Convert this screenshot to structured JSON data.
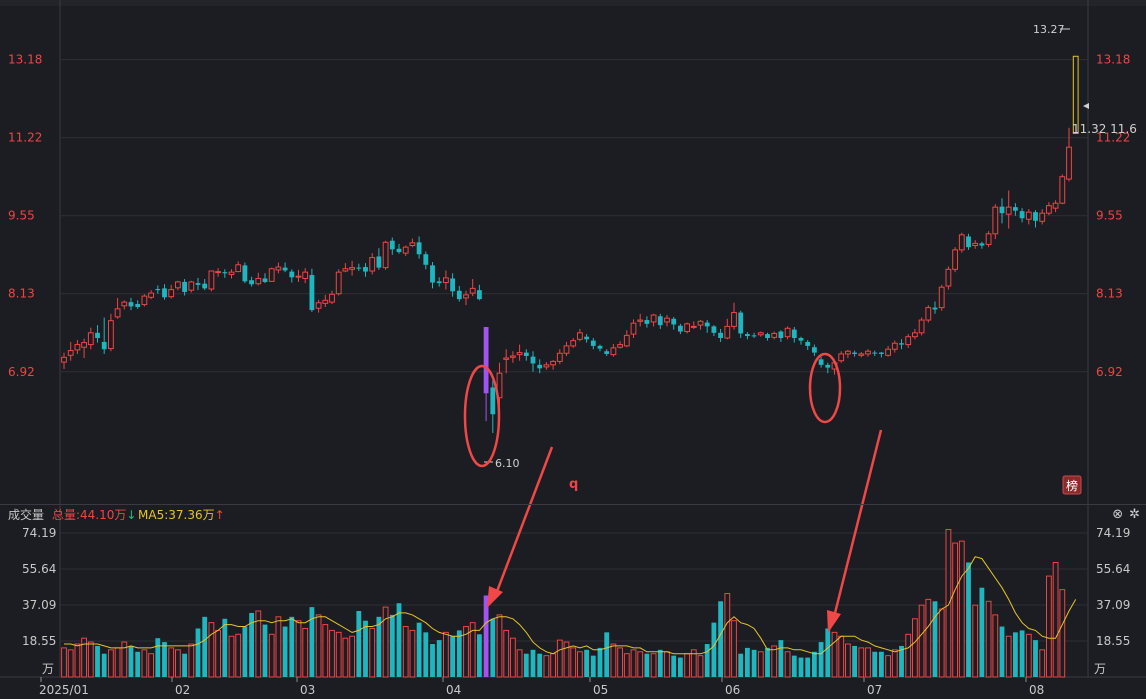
{
  "colors": {
    "background": "#1c1d22",
    "grid": "#2e2f36",
    "up": "#ef4444",
    "down": "#1fb7bf",
    "ma5": "#e5c42a",
    "highlight_bar": "#a154f2",
    "annotation": "#f04747",
    "price_axis_text": "#ef4444",
    "vol_axis_text": "#c8c8c8"
  },
  "price_panel": {
    "y_ticks": [
      "13.18",
      "11.22",
      "9.55",
      "8.13",
      "6.92"
    ],
    "high_marker": "13.27",
    "last_marker": "11.32 11.6",
    "low_marker": "6.10",
    "badge": "榜",
    "glyph_q": "q"
  },
  "volume_panel": {
    "title": "成交量",
    "total_label": "总量:44.10万",
    "total_arrow": "↓",
    "ma5_label": "MA5:37.36万",
    "ma5_arrow": "↑",
    "y_ticks": [
      "74.19",
      "55.64",
      "37.09",
      "18.55"
    ],
    "unit": "万",
    "icons": [
      "close-icon",
      "settings-icon"
    ]
  },
  "x_axis": {
    "labels": [
      "2025/01",
      "02",
      "03",
      "04",
      "05",
      "06",
      "07",
      "08"
    ]
  },
  "chart_data": [
    {
      "type": "candlestick",
      "title": "",
      "y_scale": "log",
      "ylim": [
        5.4,
        14.6
      ],
      "y_ticks": [
        13.18,
        11.22,
        9.55,
        8.13,
        6.92
      ],
      "annotations": [
        {
          "type": "max",
          "value": 13.27
        },
        {
          "type": "min",
          "value": 6.1
        },
        {
          "type": "last",
          "value": 11.32
        }
      ],
      "ohlc": [
        [
          7.06,
          7.13,
          6.96,
          7.2
        ],
        [
          7.16,
          7.23,
          7.08,
          7.36
        ],
        [
          7.24,
          7.32,
          7.18,
          7.39
        ],
        [
          7.28,
          7.35,
          7.12,
          7.41
        ],
        [
          7.32,
          7.5,
          7.25,
          7.58
        ],
        [
          7.5,
          7.42,
          7.35,
          7.62
        ],
        [
          7.36,
          7.25,
          7.18,
          7.74
        ],
        [
          7.26,
          7.69,
          7.22,
          7.8
        ],
        [
          7.75,
          7.88,
          7.72,
          8.06
        ],
        [
          7.93,
          7.99,
          7.87,
          8.02
        ],
        [
          7.99,
          7.92,
          7.86,
          8.06
        ],
        [
          7.96,
          7.91,
          7.88,
          8.02
        ],
        [
          7.95,
          8.09,
          7.92,
          8.12
        ],
        [
          8.07,
          8.14,
          8.04,
          8.19
        ],
        [
          8.21,
          8.19,
          8.13,
          8.27
        ],
        [
          8.22,
          8.07,
          8.03,
          8.29
        ],
        [
          8.08,
          8.2,
          8.05,
          8.28
        ],
        [
          8.23,
          8.33,
          8.19,
          8.35
        ],
        [
          8.33,
          8.16,
          8.1,
          8.38
        ],
        [
          8.19,
          8.33,
          8.15,
          8.35
        ],
        [
          8.31,
          8.28,
          8.19,
          8.4
        ],
        [
          8.3,
          8.22,
          8.19,
          8.38
        ],
        [
          8.21,
          8.52,
          8.17,
          8.53
        ],
        [
          8.5,
          8.51,
          8.42,
          8.57
        ],
        [
          8.5,
          8.48,
          8.4,
          8.55
        ],
        [
          8.46,
          8.5,
          8.39,
          8.55
        ],
        [
          8.51,
          8.63,
          8.5,
          8.69
        ],
        [
          8.62,
          8.34,
          8.31,
          8.67
        ],
        [
          8.36,
          8.29,
          8.25,
          8.42
        ],
        [
          8.3,
          8.39,
          8.27,
          8.49
        ],
        [
          8.39,
          8.33,
          8.31,
          8.48
        ],
        [
          8.34,
          8.56,
          8.33,
          8.58
        ],
        [
          8.54,
          8.59,
          8.48,
          8.67
        ],
        [
          8.58,
          8.53,
          8.5,
          8.67
        ],
        [
          8.51,
          8.41,
          8.32,
          8.55
        ],
        [
          8.43,
          8.43,
          8.33,
          8.54
        ],
        [
          8.39,
          8.5,
          8.31,
          8.57
        ],
        [
          8.45,
          7.86,
          7.83,
          8.56
        ],
        [
          7.89,
          7.98,
          7.82,
          8.03
        ],
        [
          7.97,
          8.02,
          7.91,
          8.11
        ],
        [
          7.99,
          8.12,
          7.96,
          8.18
        ],
        [
          8.13,
          8.5,
          8.1,
          8.55
        ],
        [
          8.52,
          8.56,
          8.5,
          8.66
        ],
        [
          8.55,
          8.58,
          8.44,
          8.7
        ],
        [
          8.58,
          8.57,
          8.52,
          8.65
        ],
        [
          8.59,
          8.51,
          8.42,
          8.66
        ],
        [
          8.52,
          8.76,
          8.46,
          8.84
        ],
        [
          8.78,
          8.58,
          8.54,
          8.93
        ],
        [
          8.58,
          9.04,
          8.54,
          9.07
        ],
        [
          9.07,
          8.91,
          8.81,
          9.13
        ],
        [
          8.92,
          8.86,
          8.83,
          9.01
        ],
        [
          8.84,
          8.95,
          8.79,
          8.98
        ],
        [
          8.98,
          9.03,
          8.95,
          9.11
        ],
        [
          9.04,
          8.82,
          8.74,
          9.15
        ],
        [
          8.82,
          8.63,
          8.55,
          8.87
        ],
        [
          8.62,
          8.32,
          8.22,
          8.68
        ],
        [
          8.34,
          8.31,
          8.25,
          8.41
        ],
        [
          8.32,
          8.4,
          8.2,
          8.53
        ],
        [
          8.39,
          8.17,
          8.08,
          8.48
        ],
        [
          8.18,
          8.04,
          8.0,
          8.26
        ],
        [
          8.06,
          8.11,
          7.94,
          8.18
        ],
        [
          8.14,
          8.22,
          8.09,
          8.38
        ],
        [
          8.19,
          8.04,
          8.02,
          8.28
        ],
        [
          7.59,
          6.62,
          6.25,
          7.59
        ],
        [
          6.7,
          6.34,
          6.1,
          6.8
        ],
        [
          6.56,
          6.9,
          6.3,
          7.05
        ],
        [
          7.1,
          7.12,
          6.9,
          7.25
        ],
        [
          7.13,
          7.15,
          7.05,
          7.22
        ],
        [
          7.17,
          7.2,
          7.08,
          7.32
        ],
        [
          7.2,
          7.15,
          7.08,
          7.25
        ],
        [
          7.14,
          7.04,
          6.92,
          7.22
        ],
        [
          7.02,
          6.97,
          6.9,
          7.1
        ],
        [
          6.99,
          7.02,
          6.95,
          7.06
        ],
        [
          7.02,
          7.07,
          6.95,
          7.09
        ],
        [
          7.07,
          7.19,
          7.03,
          7.25
        ],
        [
          7.19,
          7.3,
          7.15,
          7.36
        ],
        [
          7.3,
          7.38,
          7.27,
          7.42
        ],
        [
          7.4,
          7.5,
          7.37,
          7.56
        ],
        [
          7.44,
          7.4,
          7.35,
          7.48
        ],
        [
          7.38,
          7.3,
          7.25,
          7.42
        ],
        [
          7.3,
          7.26,
          7.22,
          7.32
        ],
        [
          7.22,
          7.18,
          7.15,
          7.25
        ],
        [
          7.17,
          7.27,
          7.14,
          7.33
        ],
        [
          7.28,
          7.32,
          7.26,
          7.37
        ],
        [
          7.3,
          7.46,
          7.28,
          7.54
        ],
        [
          7.48,
          7.65,
          7.42,
          7.71
        ],
        [
          7.68,
          7.7,
          7.6,
          7.8
        ],
        [
          7.7,
          7.64,
          7.58,
          7.76
        ],
        [
          7.67,
          7.78,
          7.6,
          7.8
        ],
        [
          7.76,
          7.62,
          7.56,
          7.8
        ],
        [
          7.67,
          7.73,
          7.6,
          7.78
        ],
        [
          7.72,
          7.63,
          7.55,
          7.75
        ],
        [
          7.61,
          7.52,
          7.48,
          7.64
        ],
        [
          7.52,
          7.64,
          7.49,
          7.66
        ],
        [
          7.6,
          7.6,
          7.56,
          7.68
        ],
        [
          7.62,
          7.68,
          7.55,
          7.7
        ],
        [
          7.66,
          7.6,
          7.5,
          7.7
        ],
        [
          7.6,
          7.5,
          7.45,
          7.62
        ],
        [
          7.5,
          7.42,
          7.36,
          7.56
        ],
        [
          7.42,
          7.6,
          7.4,
          7.72
        ],
        [
          7.6,
          7.82,
          7.55,
          7.98
        ],
        [
          7.82,
          7.49,
          7.42,
          7.85
        ],
        [
          7.48,
          7.45,
          7.4,
          7.51
        ],
        [
          7.46,
          7.45,
          7.42,
          7.5
        ],
        [
          7.47,
          7.5,
          7.44,
          7.52
        ],
        [
          7.48,
          7.42,
          7.38,
          7.5
        ],
        [
          7.43,
          7.49,
          7.4,
          7.52
        ],
        [
          7.52,
          7.42,
          7.36,
          7.54
        ],
        [
          7.44,
          7.57,
          7.4,
          7.6
        ],
        [
          7.55,
          7.42,
          7.35,
          7.59
        ],
        [
          7.42,
          7.38,
          7.32,
          7.44
        ],
        [
          7.36,
          7.3,
          7.24,
          7.39
        ],
        [
          7.28,
          7.2,
          7.15,
          7.32
        ],
        [
          7.1,
          7.02,
          6.98,
          7.14
        ],
        [
          7.02,
          6.98,
          6.9,
          7.05
        ],
        [
          6.96,
          7.05,
          6.88,
          7.1
        ],
        [
          7.08,
          7.18,
          7.05,
          7.22
        ],
        [
          7.18,
          7.22,
          7.12,
          7.24
        ],
        [
          7.2,
          7.18,
          7.14,
          7.23
        ],
        [
          7.16,
          7.18,
          7.13,
          7.21
        ],
        [
          7.18,
          7.22,
          7.14,
          7.25
        ],
        [
          7.2,
          7.19,
          7.15,
          7.23
        ],
        [
          7.2,
          7.18,
          7.13,
          7.21
        ],
        [
          7.16,
          7.25,
          7.14,
          7.3
        ],
        [
          7.25,
          7.34,
          7.2,
          7.38
        ],
        [
          7.34,
          7.32,
          7.25,
          7.4
        ],
        [
          7.32,
          7.44,
          7.27,
          7.48
        ],
        [
          7.44,
          7.5,
          7.4,
          7.56
        ],
        [
          7.5,
          7.7,
          7.46,
          7.74
        ],
        [
          7.7,
          7.9,
          7.66,
          7.94
        ],
        [
          7.9,
          7.87,
          7.8,
          8.0
        ],
        [
          7.9,
          8.24,
          7.85,
          8.28
        ],
        [
          8.26,
          8.55,
          8.2,
          8.6
        ],
        [
          8.55,
          8.9,
          8.5,
          8.95
        ],
        [
          8.9,
          9.18,
          8.85,
          9.22
        ],
        [
          9.15,
          8.95,
          8.9,
          9.2
        ],
        [
          8.98,
          9.02,
          8.92,
          9.08
        ],
        [
          9.02,
          8.98,
          8.92,
          9.05
        ],
        [
          9.0,
          9.2,
          8.95,
          9.25
        ],
        [
          9.2,
          9.72,
          9.1,
          9.78
        ],
        [
          9.73,
          9.6,
          9.4,
          9.9
        ],
        [
          9.58,
          9.72,
          9.3,
          10.06
        ],
        [
          9.72,
          9.65,
          9.55,
          9.8
        ],
        [
          9.64,
          9.5,
          9.42,
          9.7
        ],
        [
          9.48,
          9.62,
          9.38,
          9.68
        ],
        [
          9.62,
          9.45,
          9.32,
          9.66
        ],
        [
          9.44,
          9.6,
          9.38,
          9.68
        ],
        [
          9.6,
          9.75,
          9.56,
          9.82
        ],
        [
          9.7,
          9.8,
          9.62,
          9.86
        ],
        [
          9.8,
          10.35,
          9.78,
          10.4
        ],
        [
          10.3,
          11.0,
          10.25,
          11.45
        ],
        [
          11.32,
          13.27,
          11.32,
          13.27
        ]
      ]
    },
    {
      "type": "bar",
      "title": "成交量",
      "unit": "万",
      "ylim": [
        0,
        74.19
      ],
      "y_ticks": [
        74.19,
        55.64,
        37.09,
        18.55
      ],
      "series": [
        {
          "name": "成交量",
          "type": "bar",
          "values": [
            15,
            14,
            17,
            20,
            18,
            16,
            12,
            14,
            15,
            18,
            16,
            13,
            14,
            12,
            20,
            18,
            15,
            14,
            12,
            17,
            25,
            31,
            28,
            24,
            30,
            21,
            22,
            26,
            33,
            34,
            27,
            22,
            31,
            26,
            31,
            29,
            25,
            36,
            32,
            27,
            24,
            23,
            20,
            21,
            34,
            29,
            25,
            31,
            36,
            32,
            38,
            26,
            24,
            28,
            23,
            17,
            19,
            23,
            21,
            24,
            26,
            28,
            22,
            42,
            30,
            32,
            24,
            20,
            14,
            12,
            14,
            12,
            11,
            12,
            19,
            18,
            15,
            13,
            14,
            11,
            15,
            23,
            17,
            15,
            12,
            14,
            13,
            12,
            12,
            14,
            13,
            11,
            10,
            12,
            14,
            11,
            17,
            28,
            39,
            43,
            29,
            12,
            15,
            14,
            13,
            15,
            16,
            19,
            13,
            11,
            10,
            10,
            13,
            18,
            25,
            23,
            21,
            17,
            16,
            15,
            15,
            13,
            13,
            11,
            14,
            16,
            22,
            30,
            37,
            40,
            39,
            35,
            76,
            69,
            70,
            59,
            37,
            46,
            39,
            32,
            26,
            21,
            23,
            24,
            22,
            19,
            14,
            52,
            59,
            45
          ]
        },
        {
          "name": "MA5",
          "type": "line",
          "values": [
            17,
            17,
            16,
            17,
            17,
            17,
            16,
            15,
            15,
            15,
            16,
            15,
            15,
            15,
            16,
            16,
            16,
            16,
            16,
            16,
            17,
            19,
            22,
            24,
            27,
            27,
            26,
            26,
            28,
            29,
            29,
            28,
            29,
            29,
            30,
            28,
            28,
            30,
            31,
            31,
            29,
            27,
            25,
            23,
            24,
            26,
            26,
            27,
            30,
            31,
            33,
            33,
            32,
            30,
            28,
            25,
            23,
            22,
            21,
            21,
            22,
            24,
            24,
            28,
            30,
            31,
            31,
            30,
            27,
            23,
            18,
            15,
            13,
            12,
            14,
            15,
            16,
            15,
            16,
            14,
            14,
            15,
            16,
            16,
            16,
            15,
            15,
            13,
            13,
            13,
            13,
            12,
            12,
            12,
            12,
            12,
            13,
            16,
            22,
            28,
            31,
            28,
            27,
            25,
            20,
            14,
            14,
            15,
            15,
            14,
            14,
            13,
            12,
            12,
            15,
            18,
            21,
            21,
            21,
            19,
            18,
            16,
            15,
            14,
            13,
            14,
            15,
            18,
            22,
            26,
            31,
            35,
            37,
            45,
            52,
            56,
            62,
            61,
            56,
            51,
            46,
            40,
            33,
            28,
            25,
            24,
            21,
            20,
            20,
            27,
            34,
            40
          ]
        }
      ]
    }
  ]
}
